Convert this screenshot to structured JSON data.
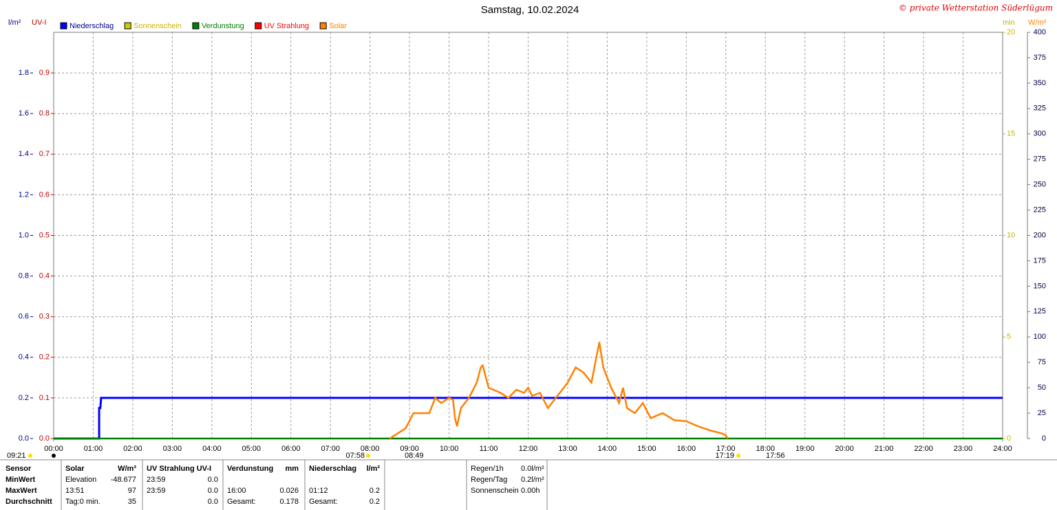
{
  "chart_data": {
    "type": "line",
    "title": "Samstag, 10.02.2024",
    "copyright": "© private Wetterstation Süderlügum",
    "units": {
      "y": "l/m²",
      "uv": "UV-I",
      "min": "min",
      "solar": "W/m²"
    },
    "xlim": [
      0,
      24
    ],
    "xticks": [
      {
        "value": 0,
        "label": "00:00"
      },
      {
        "value": 1,
        "label": "01:00"
      },
      {
        "value": 2,
        "label": "02:00"
      },
      {
        "value": 3,
        "label": "03:00"
      },
      {
        "value": 4,
        "label": "04:00"
      },
      {
        "value": 5,
        "label": "05:00"
      },
      {
        "value": 6,
        "label": "06:00"
      },
      {
        "value": 7,
        "label": "07:00"
      },
      {
        "value": 8,
        "label": "08:00"
      },
      {
        "value": 9,
        "label": "09:00"
      },
      {
        "value": 10,
        "label": "10:00"
      },
      {
        "value": 11,
        "label": "11:00"
      },
      {
        "value": 12,
        "label": "12:00"
      },
      {
        "value": 13,
        "label": "13:00"
      },
      {
        "value": 14,
        "label": "14:00"
      },
      {
        "value": 15,
        "label": "15:00"
      },
      {
        "value": 16,
        "label": "16:00"
      },
      {
        "value": 17,
        "label": "17:00"
      },
      {
        "value": 18,
        "label": "18:00"
      },
      {
        "value": 19,
        "label": "19:00"
      },
      {
        "value": 20,
        "label": "20:00"
      },
      {
        "value": 21,
        "label": "21:00"
      },
      {
        "value": 22,
        "label": "22:00"
      },
      {
        "value": 23,
        "label": "23:00"
      },
      {
        "value": 24,
        "label": "24:00"
      }
    ],
    "ylim": [
      0,
      2
    ],
    "yticks": [
      {
        "value": 0,
        "label": "0.0"
      },
      0.2,
      0.4,
      0.6,
      0.8,
      {
        "value": 1,
        "label": "1.0"
      },
      1.2,
      1.4,
      1.6,
      1.8
    ],
    "uvlim": [
      0,
      1
    ],
    "uvticks": [
      {
        "value": 0,
        "label": "0.0"
      },
      0.1,
      0.2,
      0.3,
      0.4,
      0.5,
      0.6,
      0.7,
      0.8,
      0.9
    ],
    "minlim": [
      0,
      20
    ],
    "minticks": [
      0,
      5,
      10,
      15,
      20
    ],
    "solarlim": [
      0,
      400
    ],
    "solarticks": [
      0,
      25,
      50,
      75,
      100,
      125,
      150,
      175,
      200,
      225,
      250,
      275,
      300,
      325,
      350,
      375,
      400
    ],
    "grid": true,
    "series": [
      {
        "name": "Niederschlag",
        "color": "#0000ff",
        "axis": "y",
        "x": [
          0,
          1.15,
          1.15,
          1.18,
          1.2,
          24
        ],
        "values": [
          0,
          0,
          0.15,
          0.15,
          0.2,
          0.2
        ]
      },
      {
        "name": "Sonnenschein",
        "color": "#cccc00",
        "axis": "min"
      },
      {
        "name": "Verdunstung",
        "color": "#008000",
        "axis": "y",
        "x": [
          0,
          24
        ],
        "values": [
          0,
          0
        ]
      },
      {
        "name": "UV Strahlung",
        "color": "#ff0000",
        "axis": "uv"
      },
      {
        "name": "Solar",
        "color": "#ff8000",
        "axis": "solar",
        "x": [
          8.5,
          8.7,
          8.9,
          9.1,
          9.3,
          9.5,
          9.65,
          9.8,
          10,
          10.1,
          10.15,
          10.2,
          10.3,
          10.5,
          10.7,
          10.8,
          10.85,
          11,
          11.3,
          11.5,
          11.7,
          11.9,
          12,
          12.1,
          12.3,
          12.5,
          12.6,
          12.8,
          13,
          13.2,
          13.4,
          13.6,
          13.8,
          13.9,
          14.1,
          14.3,
          14.4,
          14.5,
          14.7,
          14.9,
          15.1,
          15.4,
          15.7,
          16,
          16.3,
          16.6,
          16.9,
          17,
          17.05
        ],
        "values": [
          0,
          5,
          10,
          25,
          25,
          25,
          40,
          35,
          40,
          38,
          20,
          12,
          30,
          40,
          55,
          70,
          72,
          50,
          45,
          40,
          48,
          45,
          50,
          42,
          45,
          30,
          35,
          45,
          55,
          70,
          65,
          55,
          95,
          70,
          50,
          35,
          50,
          30,
          25,
          35,
          20,
          25,
          18,
          17,
          12,
          8,
          5,
          3,
          0
        ]
      }
    ],
    "sun_times": [
      "09:21",
      "07:58",
      "08:49",
      "17:19",
      "17:56"
    ]
  },
  "table": {
    "header": [
      "Sensor",
      "Solar",
      "W/m²",
      "UV Strahlung UV-I",
      null,
      "Verdunstung",
      "mm",
      "Niederschlag",
      "l/m²"
    ],
    "rows": [
      [
        "MinWert",
        "Elevation",
        "-48.677",
        "23:59",
        "0.0",
        null,
        null,
        null,
        null
      ],
      [
        "MaxWert",
        "13:51",
        "97",
        "23:59",
        "0.0",
        "16:00",
        "0.026",
        "01:12",
        "0.2"
      ],
      [
        "Durchschnitt",
        "Tag:0 min.",
        "35",
        null,
        "0.0",
        "Gesamt:",
        "0.178",
        "Gesamt:",
        "0.2"
      ]
    ]
  },
  "summary": [
    [
      "Regen/1h",
      "0.0l/m²"
    ],
    [
      "Regen/Tag",
      "0.2l/m²"
    ],
    [
      "Sonnenschein",
      "0.00h"
    ]
  ]
}
